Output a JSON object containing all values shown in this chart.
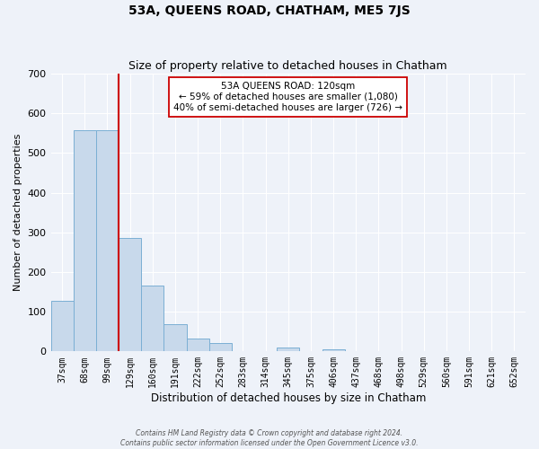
{
  "title": "53A, QUEENS ROAD, CHATHAM, ME5 7JS",
  "subtitle": "Size of property relative to detached houses in Chatham",
  "xlabel": "Distribution of detached houses by size in Chatham",
  "ylabel": "Number of detached properties",
  "bar_labels": [
    "37sqm",
    "68sqm",
    "99sqm",
    "129sqm",
    "160sqm",
    "191sqm",
    "222sqm",
    "252sqm",
    "283sqm",
    "314sqm",
    "345sqm",
    "375sqm",
    "406sqm",
    "437sqm",
    "468sqm",
    "498sqm",
    "529sqm",
    "560sqm",
    "591sqm",
    "621sqm",
    "652sqm"
  ],
  "bar_values": [
    128,
    557,
    557,
    285,
    165,
    68,
    33,
    20,
    0,
    0,
    10,
    0,
    5,
    0,
    0,
    0,
    0,
    0,
    0,
    0,
    0
  ],
  "bar_color": "#c8d9eb",
  "bar_edge_color": "#7bafd4",
  "vline_color": "#cc0000",
  "annotation_text": "53A QUEENS ROAD: 120sqm\n← 59% of detached houses are smaller (1,080)\n40% of semi-detached houses are larger (726) →",
  "annotation_box_color": "#ffffff",
  "annotation_box_edge": "#cc0000",
  "ylim": [
    0,
    700
  ],
  "yticks": [
    0,
    100,
    200,
    300,
    400,
    500,
    600,
    700
  ],
  "footer_line1": "Contains HM Land Registry data © Crown copyright and database right 2024.",
  "footer_line2": "Contains public sector information licensed under the Open Government Licence v3.0.",
  "bg_color": "#eef2f9",
  "grid_color": "#ffffff",
  "title_fontsize": 10,
  "subtitle_fontsize": 9
}
